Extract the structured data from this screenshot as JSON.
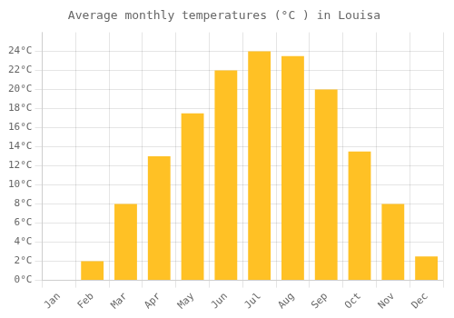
{
  "chart_data": {
    "type": "bar",
    "title": "Average monthly temperatures (°C ) in Louisa",
    "categories": [
      "Jan",
      "Feb",
      "Mar",
      "Apr",
      "May",
      "Jun",
      "Jul",
      "Aug",
      "Sep",
      "Oct",
      "Nov",
      "Dec"
    ],
    "values": [
      0,
      2,
      8,
      13,
      17.5,
      22,
      24,
      23.5,
      20,
      13.5,
      8,
      2.5
    ],
    "color": "#FFC125",
    "ylim": [
      0,
      26
    ],
    "yticks": [
      {
        "value": 0,
        "label": "0°C"
      },
      {
        "value": 2,
        "label": "2°C"
      },
      {
        "value": 4,
        "label": "4°C"
      },
      {
        "value": 6,
        "label": "6°C"
      },
      {
        "value": 8,
        "label": "8°C"
      },
      {
        "value": 10,
        "label": "10°C"
      },
      {
        "value": 12,
        "label": "12°C"
      },
      {
        "value": 14,
        "label": "14°C"
      },
      {
        "value": 16,
        "label": "16°C"
      },
      {
        "value": 18,
        "label": "18°C"
      },
      {
        "value": 20,
        "label": "20°C"
      },
      {
        "value": 22,
        "label": "22°C"
      },
      {
        "value": 24,
        "label": "24°C"
      }
    ],
    "grid": true
  }
}
